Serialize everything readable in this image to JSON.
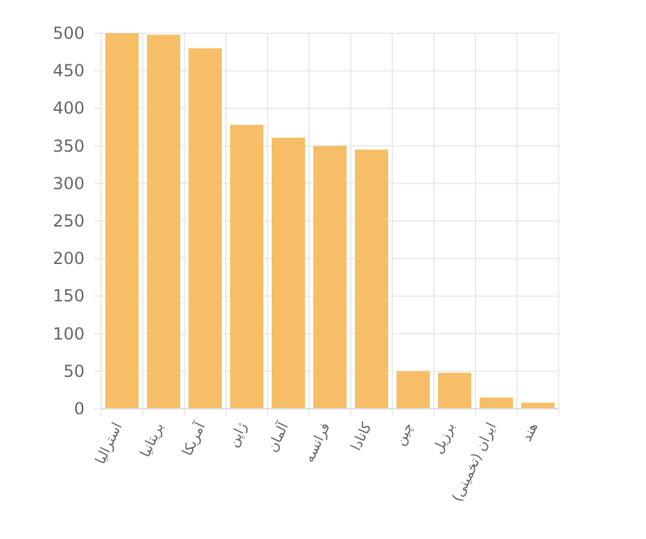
{
  "chart_data": {
    "type": "bar",
    "categories": [
      "استرالیا",
      "بریتانیا",
      "آمریکا",
      "ژاپن",
      "آلمان",
      "فرانسه",
      "کانادا",
      "چین",
      "برزیل",
      "ایران (تخمینی)",
      "هند"
    ],
    "values": [
      500,
      498,
      480,
      378,
      361,
      350,
      345,
      50,
      48,
      15,
      8
    ],
    "color": "#f6be66",
    "ylim": [
      0,
      500
    ],
    "yticks": [
      0,
      50,
      100,
      150,
      200,
      250,
      300,
      350,
      400,
      450,
      500
    ],
    "grid": true
  }
}
